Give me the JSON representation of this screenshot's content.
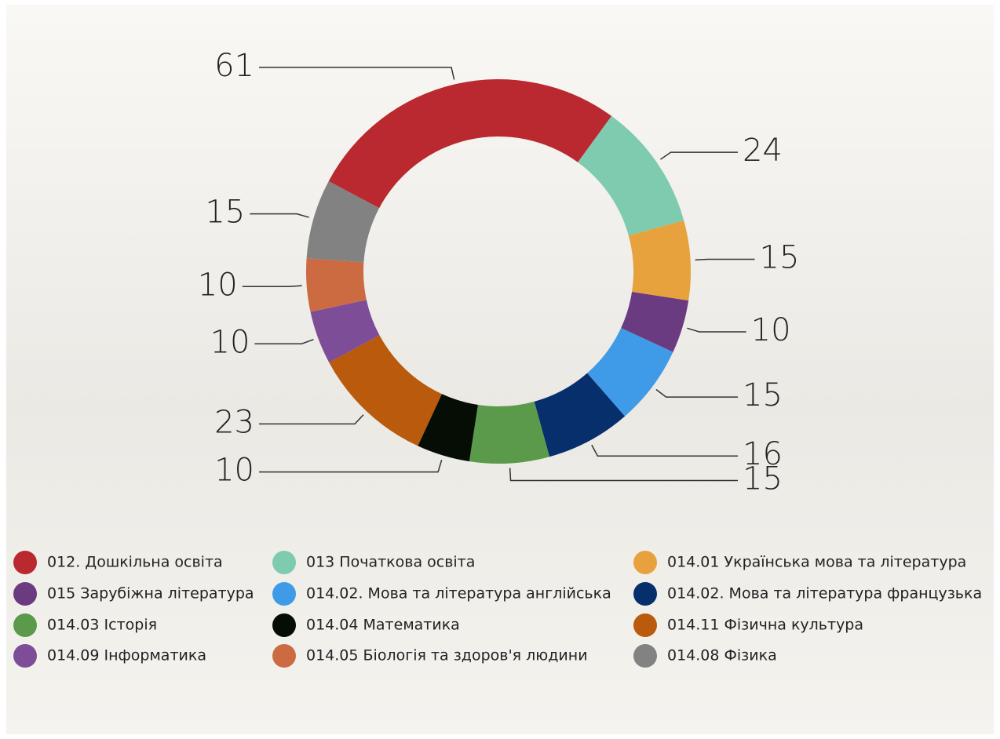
{
  "chart_data": {
    "type": "pie",
    "donut": true,
    "categories": [
      "012. Дошкільна освіта",
      "013 Початкова освіта",
      "014.01 Українська мова та література",
      "015 Зарубіжна література",
      "014.02. Мова та література англійська",
      "014.02. Мова та література французька",
      "014.03 Історія",
      "014.04 Математика",
      "014.11 Фізична культура",
      "014.09  Інформатика",
      "014.05 Біологія та здоров'я людини",
      "014.08 Фізика"
    ],
    "values": [
      61,
      24,
      15,
      10,
      15,
      16,
      15,
      10,
      23,
      10,
      10,
      15
    ],
    "colors": [
      "#b9292f",
      "#7fcbaf",
      "#e8a23d",
      "#6b3b82",
      "#3f9be8",
      "#072f6b",
      "#5b9a4b",
      "#050d05",
      "#b95a0c",
      "#7e4d98",
      "#cc6b42",
      "#828282"
    ],
    "legend": "bottom"
  }
}
